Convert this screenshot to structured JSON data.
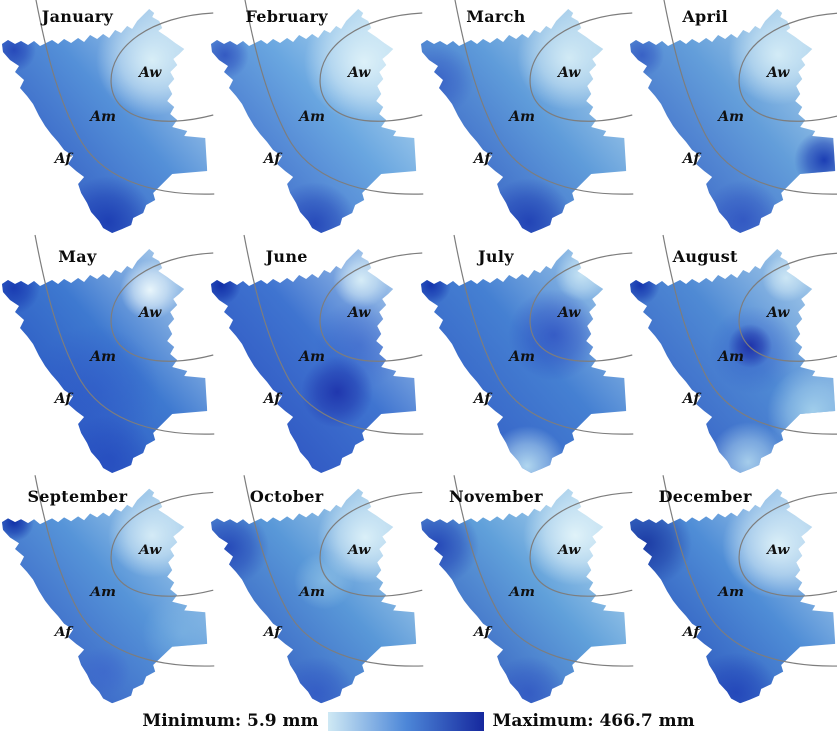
{
  "zones": {
    "aw": "Aw",
    "am": "Am",
    "af": "Af"
  },
  "legend": {
    "min_label": "Minimum: 5.9 mm",
    "max_label": "Maximum: 466.7 mm",
    "min_value_mm": 5.9,
    "max_value_mm": 466.7,
    "gradient_start": "#cfe9f4",
    "gradient_mid": "#4d87d8",
    "gradient_end": "#16289e"
  },
  "tiles": [
    {
      "month": "January",
      "base": [
        "#d7eef6",
        "#5490d8",
        "#2342b8"
      ],
      "spots": [
        [
          152,
          60,
          56,
          "#dcf1f8",
          0.95
        ],
        [
          14,
          50,
          22,
          "#1c38b2",
          0.75
        ],
        [
          108,
          222,
          46,
          "#1634ae",
          0.8
        ]
      ]
    },
    {
      "month": "February",
      "base": [
        "#d9f0f7",
        "#69a6e0",
        "#2c50c0"
      ],
      "spots": [
        [
          155,
          62,
          60,
          "#e0f3f9",
          0.95
        ],
        [
          16,
          55,
          24,
          "#2442b8",
          0.7
        ],
        [
          106,
          224,
          42,
          "#1b3ab2",
          0.75
        ]
      ]
    },
    {
      "month": "March",
      "base": [
        "#d3ecf5",
        "#5f9cda",
        "#2646ba"
      ],
      "spots": [
        [
          150,
          58,
          52,
          "#d9eff7",
          0.9
        ],
        [
          110,
          222,
          44,
          "#1a38b0",
          0.8
        ],
        [
          20,
          80,
          35,
          "#2a4abe",
          0.5
        ]
      ]
    },
    {
      "month": "April",
      "base": [
        "#d2ebf5",
        "#639eda",
        "#2c50c0"
      ],
      "spots": [
        [
          150,
          55,
          50,
          "#daf0f8",
          0.9
        ],
        [
          196,
          160,
          30,
          "#0f2fae",
          0.88
        ],
        [
          115,
          220,
          40,
          "#2646bc",
          0.65
        ],
        [
          14,
          55,
          22,
          "#2646bc",
          0.6
        ]
      ]
    },
    {
      "month": "May",
      "base": [
        "#cfe9f5",
        "#3e79d0",
        "#1e40b8"
      ],
      "spots": [
        [
          150,
          50,
          30,
          "#ecf8fc",
          0.97
        ],
        [
          14,
          48,
          26,
          "#1330ac",
          0.8
        ],
        [
          95,
          150,
          65,
          "#2c52c6",
          0.45
        ],
        [
          110,
          220,
          45,
          "#2244bc",
          0.6
        ]
      ]
    },
    {
      "month": "June",
      "base": [
        "#cde8f5",
        "#3f74d0",
        "#2644ba"
      ],
      "spots": [
        [
          152,
          40,
          28,
          "#dff3f9",
          0.9
        ],
        [
          150,
          105,
          45,
          "#2950c4",
          0.4
        ],
        [
          128,
          152,
          36,
          "#1b2da8",
          0.85
        ],
        [
          12,
          45,
          20,
          "#0e2aa4",
          0.92
        ]
      ]
    },
    {
      "month": "July",
      "base": [
        "#b9ddf0",
        "#4580d2",
        "#2c50c0"
      ],
      "spots": [
        [
          162,
          35,
          26,
          "#cfeaf6",
          0.85
        ],
        [
          135,
          95,
          46,
          "#2746be",
          0.7
        ],
        [
          12,
          45,
          20,
          "#102eaa",
          0.9
        ],
        [
          108,
          226,
          40,
          "#bde2f3",
          0.9
        ]
      ]
    },
    {
      "month": "August",
      "base": [
        "#c8e5f3",
        "#4f8ad4",
        "#2c50c0"
      ],
      "spots": [
        [
          158,
          38,
          24,
          "#d6edf7",
          0.85
        ],
        [
          125,
          110,
          44,
          "#2e54c6",
          0.5
        ],
        [
          122,
          106,
          22,
          "#1b2ca6",
          0.9
        ],
        [
          12,
          45,
          20,
          "#102eaa",
          0.9
        ],
        [
          185,
          172,
          46,
          "#aed9ef",
          0.85
        ],
        [
          120,
          222,
          40,
          "#bee3f3",
          0.8
        ]
      ]
    },
    {
      "month": "September",
      "base": [
        "#d2ecf6",
        "#5694d8",
        "#2848bc"
      ],
      "spots": [
        [
          152,
          58,
          44,
          "#dcf0f8",
          0.9
        ],
        [
          14,
          44,
          20,
          "#0e2ca6",
          0.95
        ],
        [
          182,
          160,
          40,
          "#8cc0e6",
          0.45
        ],
        [
          104,
          200,
          26,
          "#3a60cc",
          0.5
        ]
      ]
    },
    {
      "month": "October",
      "base": [
        "#d5edf6",
        "#5998d8",
        "#2546b8"
      ],
      "spots": [
        [
          156,
          60,
          48,
          "#def2f9",
          0.95
        ],
        [
          115,
          105,
          30,
          "#a8d4ec",
          0.5
        ],
        [
          20,
          70,
          40,
          "#1c3ab2",
          0.75
        ],
        [
          108,
          222,
          38,
          "#2c50c2",
          0.6
        ]
      ]
    },
    {
      "month": "November",
      "base": [
        "#daf0f8",
        "#60a0da",
        "#2444b6"
      ],
      "spots": [
        [
          156,
          58,
          52,
          "#e4f5fa",
          0.95
        ],
        [
          18,
          68,
          42,
          "#1c3ab2",
          0.8
        ],
        [
          110,
          222,
          38,
          "#2a4cc0",
          0.6
        ]
      ]
    },
    {
      "month": "December",
      "base": [
        "#d6eef7",
        "#4f8dd6",
        "#1c3cb2"
      ],
      "spots": [
        [
          150,
          68,
          56,
          "#e0f3f9",
          0.95
        ],
        [
          18,
          66,
          46,
          "#16329e",
          0.85
        ],
        [
          108,
          222,
          42,
          "#1e3eb6",
          0.75
        ]
      ]
    }
  ]
}
